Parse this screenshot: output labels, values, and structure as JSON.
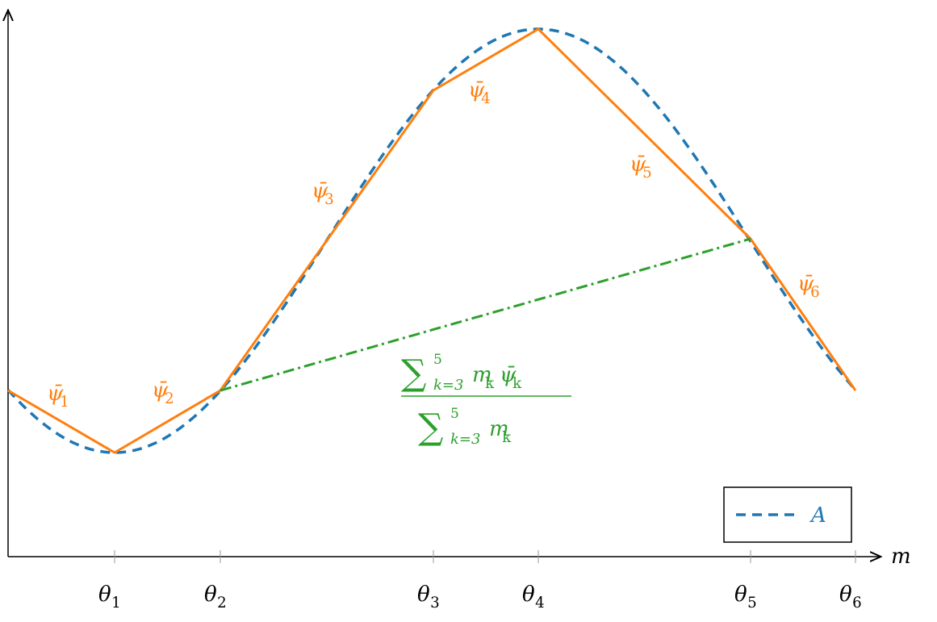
{
  "axes": {
    "x_label": "m"
  },
  "ticks": [
    {
      "symbol": "θ",
      "sub": "1"
    },
    {
      "symbol": "θ",
      "sub": "2"
    },
    {
      "symbol": "θ",
      "sub": "3"
    },
    {
      "symbol": "θ",
      "sub": "4"
    },
    {
      "symbol": "θ",
      "sub": "5"
    },
    {
      "symbol": "θ",
      "sub": "6"
    }
  ],
  "segments": [
    {
      "symbol": "ψ̄",
      "sub": "1"
    },
    {
      "symbol": "ψ̄",
      "sub": "2"
    },
    {
      "symbol": "ψ̄",
      "sub": "3"
    },
    {
      "symbol": "ψ̄",
      "sub": "4"
    },
    {
      "symbol": "ψ̄",
      "sub": "5"
    },
    {
      "symbol": "ψ̄",
      "sub": "6"
    }
  ],
  "fraction": {
    "numerator": {
      "sum": "∑",
      "upper": "5",
      "lower": "k=3",
      "terms": [
        {
          "symbol": "m",
          "sub": "k"
        },
        {
          "symbol": "ψ̄",
          "sub": "k"
        }
      ]
    },
    "denominator": {
      "sum": "∑",
      "upper": "5",
      "lower": "k=3",
      "terms": [
        {
          "symbol": "m",
          "sub": "k"
        }
      ]
    }
  },
  "legend": {
    "label": "A"
  }
}
